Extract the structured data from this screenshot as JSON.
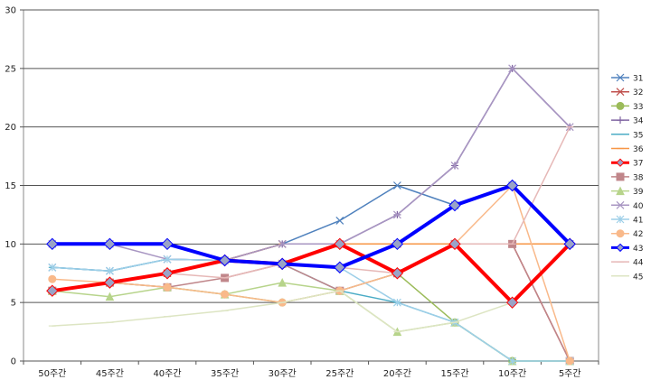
{
  "chart_data": {
    "type": "line",
    "categories": [
      "50주간",
      "45주간",
      "40주간",
      "35주간",
      "30주간",
      "25주간",
      "20주간",
      "15주간",
      "10주간",
      "5주간"
    ],
    "ylim": [
      0,
      30
    ],
    "yticks": [
      0,
      5,
      10,
      15,
      20,
      25,
      30
    ],
    "grid": "horizontal",
    "legend_position": "right",
    "series": [
      {
        "name": "31",
        "color": "#4f81bd",
        "marker": "x",
        "width": 1.5,
        "values": [
          8,
          7.7,
          8.7,
          8.6,
          10,
          12,
          15,
          13.3,
          15,
          10
        ]
      },
      {
        "name": "32",
        "color": "#c0504d",
        "marker": "x",
        "width": 1.5,
        "values": [
          6,
          6.7,
          7.5,
          8.6,
          10,
          10,
          10,
          10,
          10,
          0
        ]
      },
      {
        "name": "33",
        "color": "#9bbb59",
        "marker": "circle",
        "width": 1.5,
        "values": [
          6,
          6.7,
          6.3,
          5.7,
          5,
          6,
          7.5,
          3.3,
          0,
          0
        ]
      },
      {
        "name": "34",
        "color": "#8064a2",
        "marker": "plus",
        "width": 1.5,
        "values": [
          6,
          6.7,
          7.5,
          8.6,
          10,
          10,
          12.5,
          16.7,
          25,
          20
        ]
      },
      {
        "name": "35",
        "color": "#4bacc6",
        "marker": "dash",
        "width": 1.5,
        "values": [
          8,
          7.7,
          8.7,
          8.6,
          8.3,
          6,
          5,
          3.3,
          0,
          0
        ]
      },
      {
        "name": "36",
        "color": "#f79646",
        "marker": "dash",
        "width": 1.5,
        "values": [
          6,
          6.7,
          7.5,
          8.6,
          10,
          10,
          10,
          10,
          10,
          10
        ]
      },
      {
        "name": "37",
        "color": "#ff0000",
        "marker": "diamond",
        "width": 4,
        "values": [
          6,
          6.7,
          7.5,
          8.6,
          8.3,
          10,
          7.5,
          10,
          5,
          10
        ]
      },
      {
        "name": "38",
        "color": "#c0868a",
        "marker": "square",
        "width": 1.5,
        "values": [
          6,
          6.7,
          6.3,
          7.1,
          8.3,
          6,
          7.5,
          10,
          10,
          0
        ]
      },
      {
        "name": "39",
        "color": "#b7d48b",
        "marker": "triangle",
        "width": 1.5,
        "values": [
          6,
          5.5,
          6.3,
          5.7,
          6.7,
          6,
          2.5,
          3.3,
          0,
          0
        ]
      },
      {
        "name": "40",
        "color": "#a896c2",
        "marker": "x",
        "width": 1.5,
        "values": [
          10,
          10,
          8.7,
          8.6,
          10,
          10,
          12.5,
          16.7,
          25,
          20
        ]
      },
      {
        "name": "41",
        "color": "#9dcfe8",
        "marker": "star",
        "width": 1.5,
        "values": [
          8,
          7.7,
          8.7,
          8.6,
          8.3,
          8,
          5,
          3.3,
          0,
          0
        ]
      },
      {
        "name": "42",
        "color": "#f9b98a",
        "marker": "circle",
        "width": 1.5,
        "values": [
          7,
          6.7,
          6.3,
          5.7,
          5,
          6,
          7.5,
          10,
          15,
          0
        ]
      },
      {
        "name": "43",
        "color": "#0000ff",
        "marker": "diamond",
        "width": 4,
        "values": [
          10,
          10,
          10,
          8.6,
          8.3,
          8,
          10,
          13.3,
          15,
          10
        ]
      },
      {
        "name": "44",
        "color": "#e6b8b7",
        "marker": "dash",
        "width": 1.5,
        "values": [
          6,
          6.7,
          7.5,
          7.1,
          8.3,
          8,
          7.5,
          10,
          10,
          20
        ]
      },
      {
        "name": "45",
        "color": "#dde5c3",
        "marker": "dash",
        "width": 1.5,
        "values": [
          3,
          3.3,
          3.8,
          4.3,
          5,
          6,
          2.5,
          3.3,
          5,
          10
        ]
      }
    ]
  }
}
